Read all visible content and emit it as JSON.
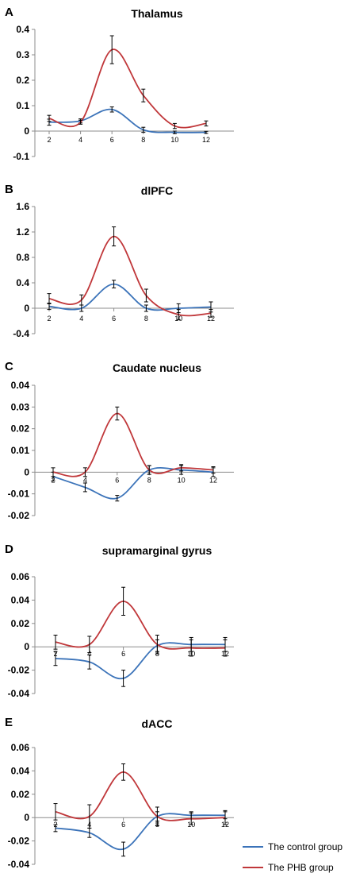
{
  "colors": {
    "control": "#3b73b9",
    "phb": "#c0373a",
    "axis": "#8c8c8c",
    "errorbar": "#000000"
  },
  "legend": {
    "placement": "bottom-right",
    "items": [
      {
        "label": "The control group",
        "color": "#3b73b9"
      },
      {
        "label": "The PHB group",
        "color": "#c0373a"
      }
    ]
  },
  "chart_data": [
    {
      "panel": "A",
      "type": "line",
      "title": "Thalamus",
      "xlabel": "",
      "ylabel": "",
      "x": [
        2,
        4,
        6,
        8,
        10,
        12
      ],
      "xticks": [
        "2",
        "4",
        "6",
        "8",
        "10",
        "12"
      ],
      "ylim": [
        -0.1,
        0.4
      ],
      "yticks": [
        "0.4",
        "0.3",
        "0.2",
        "0.1",
        "0",
        "-0.1"
      ],
      "grid": false,
      "series": [
        {
          "name": "The control group",
          "values": [
            0.035,
            0.04,
            0.085,
            0.005,
            -0.005,
            -0.005
          ],
          "err": [
            0.012,
            0.008,
            0.01,
            0.01,
            0.005,
            0.004
          ]
        },
        {
          "name": "The PHB group",
          "values": [
            0.05,
            0.035,
            0.32,
            0.14,
            0.02,
            0.03
          ],
          "err": [
            0.012,
            0.008,
            0.055,
            0.025,
            0.01,
            0.01
          ]
        }
      ]
    },
    {
      "panel": "B",
      "type": "line",
      "title": "dlPFC",
      "xlabel": "",
      "ylabel": "",
      "x": [
        2,
        4,
        6,
        8,
        10,
        12
      ],
      "xticks": [
        "2",
        "4",
        "6",
        "8",
        "10",
        "12"
      ],
      "ylim": [
        -0.4,
        1.6
      ],
      "yticks": [
        "1.6",
        "1.2",
        "0.8",
        "0.4",
        "0",
        "-0.4"
      ],
      "grid": false,
      "series": [
        {
          "name": "The control group",
          "values": [
            0.03,
            0.0,
            0.38,
            0.0,
            0.0,
            0.02
          ],
          "err": [
            0.05,
            0.05,
            0.06,
            0.05,
            0.07,
            0.08
          ]
        },
        {
          "name": "The PHB group",
          "values": [
            0.15,
            0.13,
            1.13,
            0.2,
            -0.1,
            -0.08
          ],
          "err": [
            0.08,
            0.08,
            0.15,
            0.1,
            0.08,
            0.06
          ]
        }
      ]
    },
    {
      "panel": "C",
      "type": "line",
      "title": "Caudate nucleus",
      "xlabel": "",
      "ylabel": "",
      "x": [
        2,
        4,
        6,
        8,
        10,
        12
      ],
      "xticks": [
        "2",
        "4",
        "6",
        "8",
        "10",
        "12"
      ],
      "ylim": [
        -0.02,
        0.04
      ],
      "yticks": [
        "0.04",
        "0.03",
        "0.02",
        "0.01",
        "0",
        "-0.01",
        "-0.02"
      ],
      "grid": false,
      "series": [
        {
          "name": "The control group",
          "values": [
            -0.002,
            -0.007,
            -0.012,
            0.001,
            0.001,
            0.0
          ],
          "err": [
            0.002,
            0.002,
            0.0013,
            0.002,
            0.002,
            0.002
          ]
        },
        {
          "name": "The PHB group",
          "values": [
            0.0,
            0.0,
            0.027,
            0.001,
            0.002,
            0.001
          ],
          "err": [
            0.002,
            0.002,
            0.003,
            0.002,
            0.0015,
            0.0015
          ]
        }
      ]
    },
    {
      "panel": "D",
      "type": "line",
      "title": "supramarginal gyrus",
      "xlabel": "",
      "ylabel": "",
      "x": [
        2,
        4,
        6,
        8,
        10,
        12
      ],
      "xticks": [
        "2",
        "4",
        "6",
        "8",
        "10",
        "12"
      ],
      "ylim": [
        -0.04,
        0.06
      ],
      "yticks": [
        "0.06",
        "0.04",
        "0.02",
        "0",
        "-0.02",
        "-0.04"
      ],
      "grid": false,
      "series": [
        {
          "name": "The control group",
          "values": [
            -0.01,
            -0.013,
            -0.027,
            0.001,
            0.002,
            0.002
          ],
          "err": [
            0.006,
            0.006,
            0.007,
            0.005,
            0.006,
            0.006
          ]
        },
        {
          "name": "The PHB group",
          "values": [
            0.004,
            0.002,
            0.039,
            0.002,
            -0.001,
            -0.001
          ],
          "err": [
            0.006,
            0.007,
            0.012,
            0.008,
            0.007,
            0.007
          ]
        }
      ]
    },
    {
      "panel": "E",
      "type": "line",
      "title": "dACC",
      "xlabel": "",
      "ylabel": "",
      "x": [
        2,
        4,
        6,
        8,
        10,
        12
      ],
      "xticks": [
        "2",
        "4",
        "6",
        "8",
        "10",
        "12"
      ],
      "ylim": [
        -0.04,
        0.06
      ],
      "yticks": [
        "0.06",
        "0.04",
        "0.02",
        "0",
        "-0.02",
        "-0.04"
      ],
      "grid": false,
      "series": [
        {
          "name": "The control group",
          "values": [
            -0.009,
            -0.013,
            -0.027,
            0.001,
            0.002,
            0.002
          ],
          "err": [
            0.003,
            0.004,
            0.006,
            0.004,
            0.003,
            0.003
          ]
        },
        {
          "name": "The PHB group",
          "values": [
            0.005,
            0.001,
            0.039,
            0.001,
            -0.001,
            0.0
          ],
          "err": [
            0.007,
            0.01,
            0.007,
            0.008,
            0.005,
            0.006
          ]
        }
      ]
    }
  ]
}
